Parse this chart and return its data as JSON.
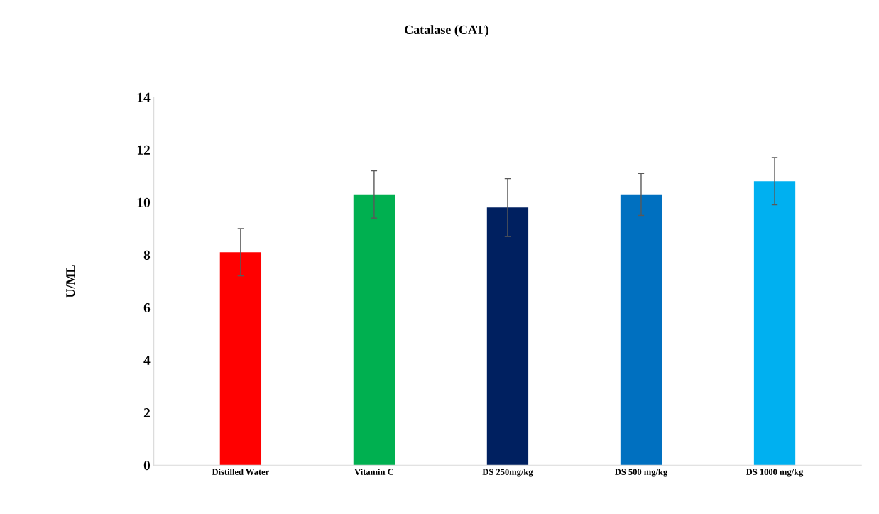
{
  "chart_data": {
    "type": "bar",
    "title": "Catalase (CAT)",
    "ylabel": "U/ML",
    "categories": [
      "Distilled Water",
      "Vitamin C",
      "DS 250mg/kg",
      "DS 500 mg/kg",
      "DS 1000 mg/kg"
    ],
    "values": [
      8.1,
      10.3,
      9.8,
      10.3,
      10.8
    ],
    "errors": [
      0.9,
      0.9,
      1.1,
      0.8,
      0.9
    ],
    "colors": [
      "#ff0000",
      "#00b050",
      "#002060",
      "#0070c0",
      "#00b0f0"
    ],
    "ylim": [
      0,
      14
    ],
    "yticks": [
      0,
      2,
      4,
      6,
      8,
      10,
      12,
      14
    ],
    "grid": false
  }
}
